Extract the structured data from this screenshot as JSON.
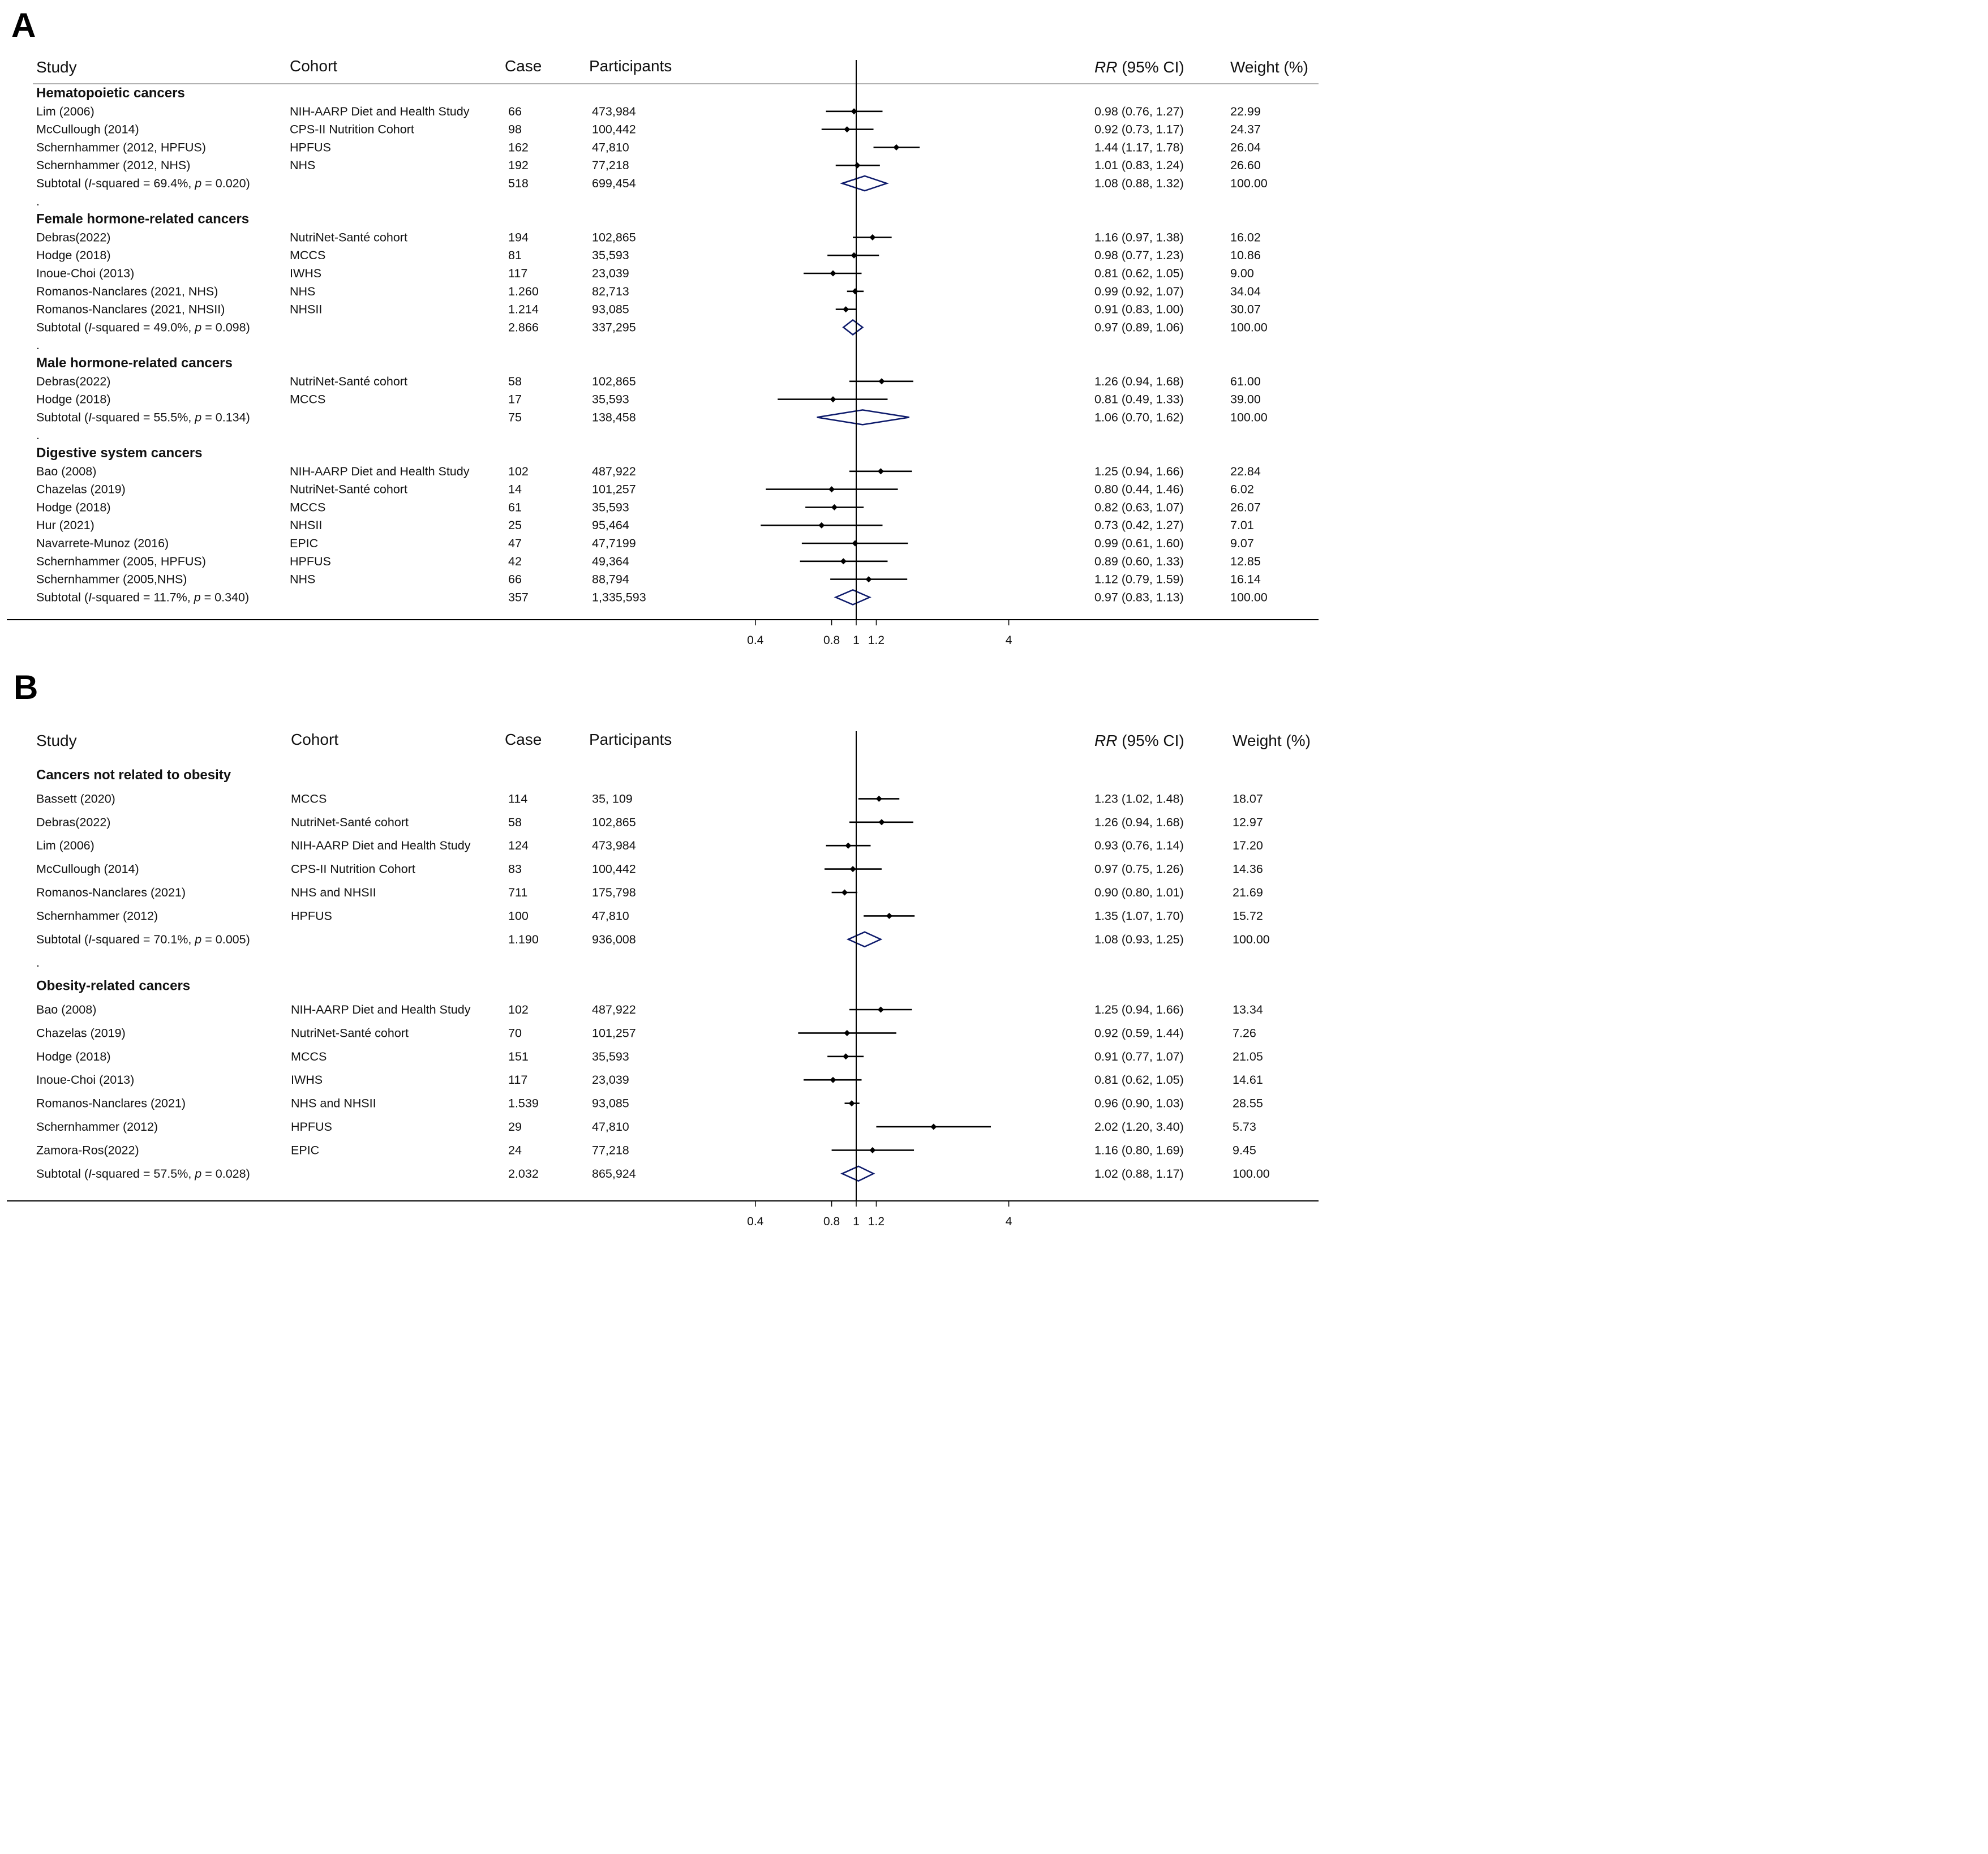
{
  "chart_data": [
    {
      "type": "forest",
      "panel_label": "A",
      "columns": {
        "study": "Study",
        "cohort": "Cohort",
        "case": "Case",
        "participants": "Participants",
        "rr_prefix": "RR",
        "rr_suffix": " (95% CI)",
        "weight": "Weight (%)"
      },
      "x_scale": "log",
      "x_ticks": [
        {
          "v": 0.4,
          "label": "0.4"
        },
        {
          "v": 0.8,
          "label": "0.8"
        },
        {
          "v": 1,
          "label": "1"
        },
        {
          "v": 1.2,
          "label": "1.2"
        },
        {
          "v": 4,
          "label": "4"
        }
      ],
      "null_value": 1,
      "rows": [
        {
          "kind": "group",
          "label": "Hematopoietic cancers"
        },
        {
          "kind": "study",
          "study": "Lim (2006)",
          "cohort": "NIH-AARP Diet and Health Study",
          "case": "66",
          "participants": "473,984",
          "rr": 0.98,
          "lo": 0.76,
          "hi": 1.27,
          "rr_text": "0.98 (0.76, 1.27)",
          "weight": "22.99"
        },
        {
          "kind": "study",
          "study": "McCullough (2014)",
          "cohort": "CPS-II Nutrition Cohort",
          "case": "98",
          "participants": "100,442",
          "rr": 0.92,
          "lo": 0.73,
          "hi": 1.17,
          "rr_text": "0.92 (0.73, 1.17)",
          "weight": "24.37"
        },
        {
          "kind": "study",
          "study": "Schernhammer (2012, HPFUS)",
          "cohort": "HPFUS",
          "case": "162",
          "participants": "47,810",
          "rr": 1.44,
          "lo": 1.17,
          "hi": 1.78,
          "rr_text": "1.44 (1.17, 1.78)",
          "weight": "26.04"
        },
        {
          "kind": "study",
          "study": "Schernhammer (2012, NHS)",
          "cohort": "NHS",
          "case": "192",
          "participants": "77,218",
          "rr": 1.01,
          "lo": 0.83,
          "hi": 1.24,
          "rr_text": "1.01 (0.83, 1.24)",
          "weight": "26.60"
        },
        {
          "kind": "subtotal",
          "pre": "Subtotal  (",
          "i2sym": "I",
          "i2text": "-squared = 69.4%, ",
          "psym": "p",
          "ptext": " = 0.020)",
          "case": "518",
          "participants": "699,454",
          "rr": 1.08,
          "lo": 0.88,
          "hi": 1.32,
          "rr_text": "1.08 (0.88, 1.32)",
          "weight": "100.00"
        },
        {
          "kind": "dot",
          "label": "."
        },
        {
          "kind": "group",
          "label": "Female hormone-related cancers"
        },
        {
          "kind": "study",
          "study": "Debras(2022)",
          "cohort": "NutriNet-Santé cohort",
          "case": "194",
          "participants": "102,865",
          "rr": 1.16,
          "lo": 0.97,
          "hi": 1.38,
          "rr_text": "1.16 (0.97, 1.38)",
          "weight": "16.02"
        },
        {
          "kind": "study",
          "study": "Hodge (2018)",
          "cohort": "MCCS",
          "case": "81",
          "participants": "35,593",
          "rr": 0.98,
          "lo": 0.77,
          "hi": 1.23,
          "rr_text": "0.98 (0.77, 1.23)",
          "weight": "10.86"
        },
        {
          "kind": "study",
          "study": "Inoue-Choi (2013)",
          "cohort": "IWHS",
          "case": "117",
          "participants": "23,039",
          "rr": 0.81,
          "lo": 0.62,
          "hi": 1.05,
          "rr_text": "0.81 (0.62, 1.05)",
          "weight": "9.00"
        },
        {
          "kind": "study",
          "study": "Romanos-Nanclares (2021, NHS)",
          "cohort": "NHS",
          "case": "1.260",
          "participants": "82,713",
          "rr": 0.99,
          "lo": 0.92,
          "hi": 1.07,
          "rr_text": "0.99 (0.92, 1.07)",
          "weight": "34.04"
        },
        {
          "kind": "study",
          "study": "Romanos-Nanclares (2021, NHSII)",
          "cohort": "NHSII",
          "case": "1.214",
          "participants": "93,085",
          "rr": 0.91,
          "lo": 0.83,
          "hi": 1.0,
          "rr_text": "0.91 (0.83, 1.00)",
          "weight": "30.07"
        },
        {
          "kind": "subtotal",
          "pre": "Subtotal  (",
          "i2sym": "I",
          "i2text": "-squared = 49.0%, ",
          "psym": "p",
          "ptext": " = 0.098)",
          "case": "2.866",
          "participants": "337,295",
          "rr": 0.97,
          "lo": 0.89,
          "hi": 1.06,
          "rr_text": "0.97 (0.89, 1.06)",
          "weight": "100.00"
        },
        {
          "kind": "dot",
          "label": "."
        },
        {
          "kind": "group",
          "label": "Male hormone-related cancers"
        },
        {
          "kind": "study",
          "study": "Debras(2022)",
          "cohort": "NutriNet-Santé cohort",
          "case": "58",
          "participants": "102,865",
          "rr": 1.26,
          "lo": 0.94,
          "hi": 1.68,
          "rr_text": "1.26 (0.94, 1.68)",
          "weight": "61.00"
        },
        {
          "kind": "study",
          "study": "Hodge (2018)",
          "cohort": "MCCS",
          "case": "17",
          "participants": "35,593",
          "rr": 0.81,
          "lo": 0.49,
          "hi": 1.33,
          "rr_text": "0.81 (0.49, 1.33)",
          "weight": "39.00"
        },
        {
          "kind": "subtotal",
          "pre": "Subtotal  (",
          "i2sym": "I",
          "i2text": "-squared = 55.5%, ",
          "psym": "p",
          "ptext": " = 0.134)",
          "case": "75",
          "participants": "138,458",
          "rr": 1.06,
          "lo": 0.7,
          "hi": 1.62,
          "rr_text": "1.06 (0.70, 1.62)",
          "weight": "100.00"
        },
        {
          "kind": "dot",
          "label": "."
        },
        {
          "kind": "group",
          "label": "Digestive system cancers"
        },
        {
          "kind": "study",
          "study": "Bao (2008)",
          "cohort": "NIH-AARP Diet and Health Study",
          "case": "102",
          "participants": "487,922",
          "rr": 1.25,
          "lo": 0.94,
          "hi": 1.66,
          "rr_text": "1.25 (0.94, 1.66)",
          "weight": "22.84"
        },
        {
          "kind": "study",
          "study": "Chazelas (2019)",
          "cohort": "NutriNet-Santé cohort",
          "case": "14",
          "participants": "101,257",
          "rr": 0.8,
          "lo": 0.44,
          "hi": 1.46,
          "rr_text": "0.80 (0.44, 1.46)",
          "weight": "6.02"
        },
        {
          "kind": "study",
          "study": "Hodge (2018)",
          "cohort": "MCCS",
          "case": "61",
          "participants": "35,593",
          "rr": 0.82,
          "lo": 0.63,
          "hi": 1.07,
          "rr_text": "0.82 (0.63, 1.07)",
          "weight": "26.07"
        },
        {
          "kind": "study",
          "study": "Hur (2021)",
          "cohort": "NHSII",
          "case": "25",
          "participants": "95,464",
          "rr": 0.73,
          "lo": 0.42,
          "hi": 1.27,
          "rr_text": "0.73 (0.42, 1.27)",
          "weight": "7.01"
        },
        {
          "kind": "study",
          "study": "Navarrete-Munoz (2016)",
          "cohort": "EPIC",
          "case": "47",
          "participants": "47,7199",
          "rr": 0.99,
          "lo": 0.61,
          "hi": 1.6,
          "rr_text": "0.99 (0.61, 1.60)",
          "weight": "9.07"
        },
        {
          "kind": "study",
          "study": "Schernhammer (2005, HPFUS)",
          "cohort": "HPFUS",
          "case": "42",
          "participants": "49,364",
          "rr": 0.89,
          "lo": 0.6,
          "hi": 1.33,
          "rr_text": "0.89 (0.60, 1.33)",
          "weight": "12.85"
        },
        {
          "kind": "study",
          "study": "Schernhammer (2005,NHS)",
          "cohort": "NHS",
          "case": "66",
          "participants": "88,794",
          "rr": 1.12,
          "lo": 0.79,
          "hi": 1.59,
          "rr_text": "1.12 (0.79, 1.59)",
          "weight": "16.14"
        },
        {
          "kind": "subtotal",
          "pre": "Subtotal  (",
          "i2sym": "I",
          "i2text": "-squared = 11.7%, ",
          "psym": "p",
          "ptext": " = 0.340)",
          "case": "357",
          "participants": "1,335,593",
          "rr": 0.97,
          "lo": 0.83,
          "hi": 1.13,
          "rr_text": "0.97 (0.83, 1.13)",
          "weight": "100.00"
        }
      ]
    },
    {
      "type": "forest",
      "panel_label": "B",
      "columns": {
        "study": "Study",
        "cohort": "Cohort",
        "case": "Case",
        "participants": "Participants",
        "rr_prefix": "RR",
        "rr_suffix": " (95% CI)",
        "weight": "Weight (%)"
      },
      "x_scale": "log",
      "x_ticks": [
        {
          "v": 0.4,
          "label": "0.4"
        },
        {
          "v": 0.8,
          "label": "0.8"
        },
        {
          "v": 1,
          "label": "1"
        },
        {
          "v": 1.2,
          "label": "1.2"
        },
        {
          "v": 4,
          "label": "4"
        }
      ],
      "null_value": 1,
      "rows": [
        {
          "kind": "group",
          "label": "Cancers not related to obesity"
        },
        {
          "kind": "study",
          "study": "Bassett (2020)",
          "cohort": "MCCS",
          "case": "114",
          "participants": "35, 109",
          "rr": 1.23,
          "lo": 1.02,
          "hi": 1.48,
          "rr_text": "1.23 (1.02, 1.48)",
          "weight": "18.07"
        },
        {
          "kind": "study",
          "study": "Debras(2022)",
          "cohort": "NutriNet-Santé cohort",
          "case": "58",
          "participants": "102,865",
          "rr": 1.26,
          "lo": 0.94,
          "hi": 1.68,
          "rr_text": "1.26 (0.94, 1.68)",
          "weight": "12.97"
        },
        {
          "kind": "study",
          "study": "Lim (2006)",
          "cohort": "NIH-AARP Diet and Health Study",
          "case": "124",
          "participants": "473,984",
          "rr": 0.93,
          "lo": 0.76,
          "hi": 1.14,
          "rr_text": "0.93 (0.76, 1.14)",
          "weight": "17.20"
        },
        {
          "kind": "study",
          "study": "McCullough (2014)",
          "cohort": "CPS-II Nutrition Cohort",
          "case": "83",
          "participants": "100,442",
          "rr": 0.97,
          "lo": 0.75,
          "hi": 1.26,
          "rr_text": "0.97 (0.75, 1.26)",
          "weight": "14.36"
        },
        {
          "kind": "study",
          "study": "Romanos-Nanclares (2021)",
          "cohort": "NHS and NHSII",
          "case": "711",
          "participants": "175,798",
          "rr": 0.9,
          "lo": 0.8,
          "hi": 1.01,
          "rr_text": "0.90 (0.80, 1.01)",
          "weight": "21.69"
        },
        {
          "kind": "study",
          "study": "Schernhammer (2012)",
          "cohort": "HPFUS",
          "case": "100",
          "participants": "47,810",
          "rr": 1.35,
          "lo": 1.07,
          "hi": 1.7,
          "rr_text": "1.35 (1.07, 1.70)",
          "weight": "15.72"
        },
        {
          "kind": "subtotal",
          "pre": "Subtotal  (",
          "i2sym": "I",
          "i2text": "-squared = 70.1%, ",
          "psym": "p",
          "ptext": " = 0.005)",
          "case": "1.190",
          "participants": "936,008",
          "rr": 1.08,
          "lo": 0.93,
          "hi": 1.25,
          "rr_text": "1.08 (0.93, 1.25)",
          "weight": "100.00"
        },
        {
          "kind": "dot",
          "label": "."
        },
        {
          "kind": "group",
          "label": "Obesity-related cancers"
        },
        {
          "kind": "study",
          "study": "Bao (2008)",
          "cohort": "NIH-AARP Diet and Health Study",
          "case": "102",
          "participants": "487,922",
          "rr": 1.25,
          "lo": 0.94,
          "hi": 1.66,
          "rr_text": "1.25 (0.94, 1.66)",
          "weight": "13.34"
        },
        {
          "kind": "study",
          "study": "Chazelas (2019)",
          "cohort": "NutriNet-Santé cohort",
          "case": "70",
          "participants": "101,257",
          "rr": 0.92,
          "lo": 0.59,
          "hi": 1.44,
          "rr_text": "0.92 (0.59, 1.44)",
          "weight": "7.26"
        },
        {
          "kind": "study",
          "study": "Hodge (2018)",
          "cohort": "MCCS",
          "case": "151",
          "participants": "35,593",
          "rr": 0.91,
          "lo": 0.77,
          "hi": 1.07,
          "rr_text": "0.91 (0.77, 1.07)",
          "weight": "21.05"
        },
        {
          "kind": "study",
          "study": "Inoue-Choi (2013)",
          "cohort": "IWHS",
          "case": "117",
          "participants": "23,039",
          "rr": 0.81,
          "lo": 0.62,
          "hi": 1.05,
          "rr_text": "0.81 (0.62, 1.05)",
          "weight": "14.61"
        },
        {
          "kind": "study",
          "study": "Romanos-Nanclares (2021)",
          "cohort": "NHS and NHSII",
          "case": "1.539",
          "participants": "93,085",
          "rr": 0.96,
          "lo": 0.9,
          "hi": 1.03,
          "rr_text": "0.96 (0.90, 1.03)",
          "weight": "28.55"
        },
        {
          "kind": "study",
          "study": "Schernhammer (2012)",
          "cohort": "HPFUS",
          "case": "29",
          "participants": "47,810",
          "rr": 2.02,
          "lo": 1.2,
          "hi": 3.4,
          "rr_text": "2.02 (1.20, 3.40)",
          "weight": "5.73"
        },
        {
          "kind": "study",
          "study": "Zamora-Ros(2022)",
          "cohort": "EPIC",
          "case": "24",
          "participants": "77,218",
          "rr": 1.16,
          "lo": 0.8,
          "hi": 1.69,
          "rr_text": "1.16 (0.80, 1.69)",
          "weight": "9.45"
        },
        {
          "kind": "subtotal",
          "pre": "Subtotal  (",
          "i2sym": "I",
          "i2text": "-squared = 57.5%, ",
          "psym": "p",
          "ptext": " = 0.028)",
          "case": "2.032",
          "participants": "865,924",
          "rr": 1.02,
          "lo": 0.88,
          "hi": 1.17,
          "rr_text": "1.02 (0.88, 1.17)",
          "weight": "100.00"
        }
      ]
    }
  ],
  "colors": {
    "text": "#111111",
    "line": "#000000",
    "diamond": "#0d1a6b"
  }
}
